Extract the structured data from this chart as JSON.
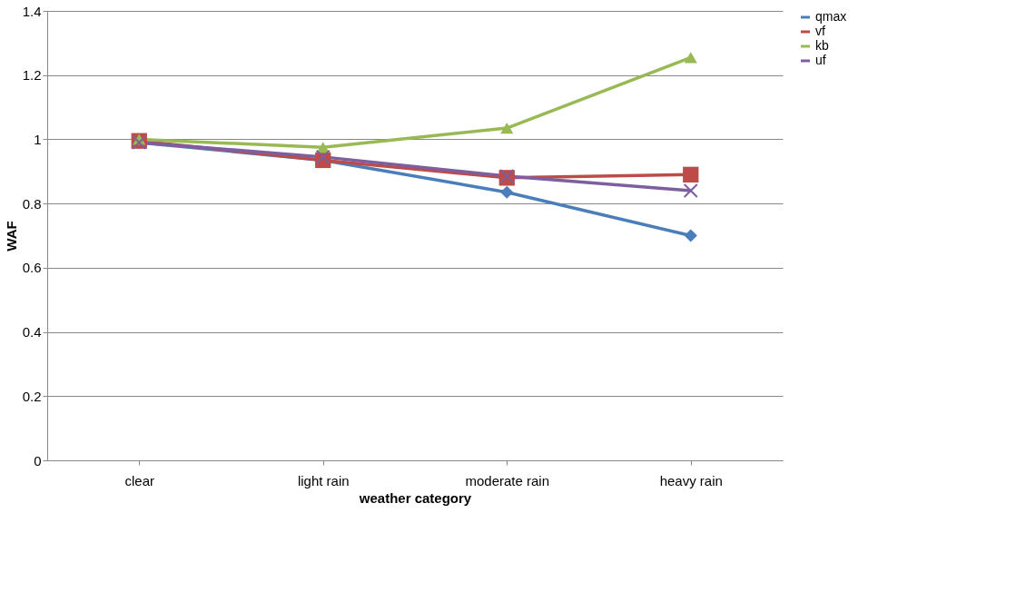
{
  "chart_data": {
    "type": "line",
    "xlabel": "weather category",
    "ylabel": "WAF",
    "categories": [
      "clear",
      "light rain",
      "moderate rain",
      "heavy rain"
    ],
    "series": [
      {
        "name": "qmax",
        "color": "#4a7ebb",
        "marker": "diamond",
        "values": [
          0.99,
          0.935,
          0.835,
          0.7
        ]
      },
      {
        "name": "vf",
        "color": "#be4b48",
        "marker": "square",
        "values": [
          0.995,
          0.935,
          0.88,
          0.89
        ]
      },
      {
        "name": "kb",
        "color": "#98b954",
        "marker": "triangle",
        "values": [
          1.0,
          0.975,
          1.035,
          1.255
        ]
      },
      {
        "name": "uf",
        "color": "#7d5fa0",
        "marker": "cross",
        "values": [
          0.99,
          0.945,
          0.885,
          0.84
        ]
      }
    ],
    "ylim": [
      0,
      1.4
    ],
    "yticks": [
      0,
      0.2,
      0.4,
      0.6,
      0.8,
      1,
      1.2,
      1.4
    ],
    "grid": "y",
    "legend": "right",
    "line_style": "solid"
  }
}
